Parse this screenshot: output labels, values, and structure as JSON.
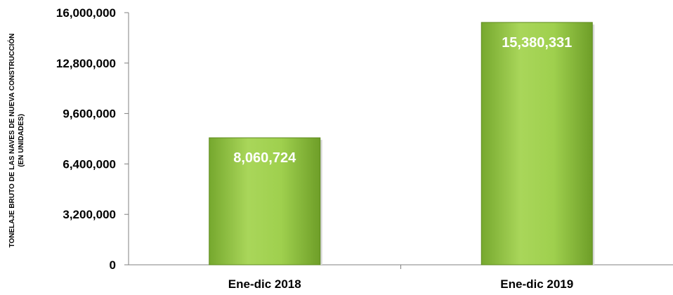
{
  "chart_data": {
    "type": "bar",
    "title": "",
    "xlabel": "",
    "ylabel": "TONELAJE BRUTO DE LAS NAVES DE NUEVA CONSTRUCCIÓN",
    "ylabel_sub": "(EN UNIDADES)",
    "categories": [
      "Ene-dic 2018",
      "Ene-dic 2019"
    ],
    "values": [
      8060724,
      15380331
    ],
    "value_labels": [
      "8,060,724",
      "15,380,331"
    ],
    "ylim": [
      0,
      16000000
    ],
    "yticks": [
      0,
      3200000,
      6400000,
      9600000,
      12800000,
      16000000
    ],
    "ytick_labels": [
      "0",
      "3,200,000",
      "6,400,000",
      "9,600,000",
      "12,800,000",
      "16,000,000"
    ],
    "grid": false,
    "legend": "none",
    "colors": {
      "bar_light": "#a9d65a",
      "bar_mid": "#8cc63f",
      "bar_dark": "#5e8a1e",
      "axis": "#808080"
    }
  }
}
